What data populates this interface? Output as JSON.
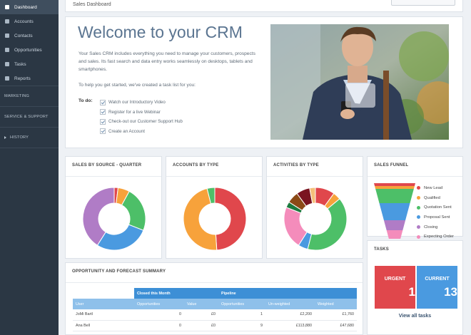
{
  "sidebar": {
    "items": [
      {
        "label": "Dashboard",
        "icon": "dashboard-icon",
        "active": true
      },
      {
        "label": "Accounts",
        "icon": "building-icon"
      },
      {
        "label": "Contacts",
        "icon": "user-icon"
      },
      {
        "label": "Opportunities",
        "icon": "lightbulb-icon"
      },
      {
        "label": "Tasks",
        "icon": "tasks-icon"
      },
      {
        "label": "Reports",
        "icon": "reports-icon"
      }
    ],
    "sections": [
      "MARKETING",
      "SERVICE & SUPPORT",
      "HISTORY"
    ]
  },
  "header": {
    "title": "Sales Dashboard"
  },
  "welcome": {
    "heading": "Welcome to your CRM",
    "intro": "Your Sales CRM includes everything you need to manage your customers, prospects and sales. Its fast search and data entry works seamlessly on desktops, tablets and smartphones.",
    "help": "To help you get started, we've created a task list for you:",
    "todo_label": "To do:",
    "todos": [
      "Watch our Introductory Video",
      "Register for a live Webinar",
      "Check-out our Customer Support Hub",
      "Create an Account"
    ]
  },
  "cards": {
    "sales_by_source": "SALES BY SOURCE - QUARTER",
    "accounts_by_type": "ACCOUNTS BY TYPE",
    "activities_by_type": "ACTIVITIES BY TYPE",
    "sales_funnel": "SALES FUNNEL",
    "tasks": "TASKS",
    "opportunity": "OPPORTUNITY AND FORECAST SUMMARY"
  },
  "chart_data": [
    {
      "type": "pie",
      "values": [
        2,
        6,
        23,
        28,
        41
      ],
      "colors": [
        "#e0474c",
        "#f7a23b",
        "#4dbf68",
        "#4a9ae0",
        "#b07cc6"
      ]
    },
    {
      "type": "pie",
      "values": [
        49,
        47,
        4
      ],
      "colors": [
        "#e0474c",
        "#f7a23b",
        "#4dbf68"
      ]
    },
    {
      "type": "pie",
      "values": [
        10,
        4,
        40,
        5,
        22,
        3,
        6,
        7,
        3
      ],
      "colors": [
        "#e0474c",
        "#f7a23b",
        "#4dbf68",
        "#4a9ae0",
        "#f48cbb",
        "#1b7a3e",
        "#8b4a16",
        "#7a1420",
        "#f4c07a"
      ]
    },
    {
      "type": "bar",
      "categories": [
        "New Lead",
        "Qualified",
        "Quotation Sent",
        "Proposal Sent",
        "Closing",
        "Expecting Order"
      ],
      "colors": [
        "#e0474c",
        "#f7a23b",
        "#4dbf68",
        "#4a9ae0",
        "#b07cc6",
        "#f48cbb"
      ]
    }
  ],
  "tasks": {
    "urgent_label": "URGENT",
    "urgent_count": "1",
    "urgent_color": "#e0474c",
    "current_label": "CURRENT",
    "current_count": "13",
    "current_color": "#4a9ae0",
    "view_all": "View all tasks"
  },
  "opportunity": {
    "group_closed": "Closed this Month",
    "group_pipeline": "Pipeline",
    "columns": [
      "User",
      "Opportunities",
      "Value",
      "Opportunities",
      "Un-weighted",
      "Weighted"
    ],
    "rows": [
      [
        "JoMi Bartl",
        "0",
        "£0",
        "1",
        "£2,200",
        "£1,760"
      ],
      [
        "Ana Bell",
        "0",
        "£0",
        "9",
        "£113,880",
        "£47,680"
      ]
    ]
  }
}
